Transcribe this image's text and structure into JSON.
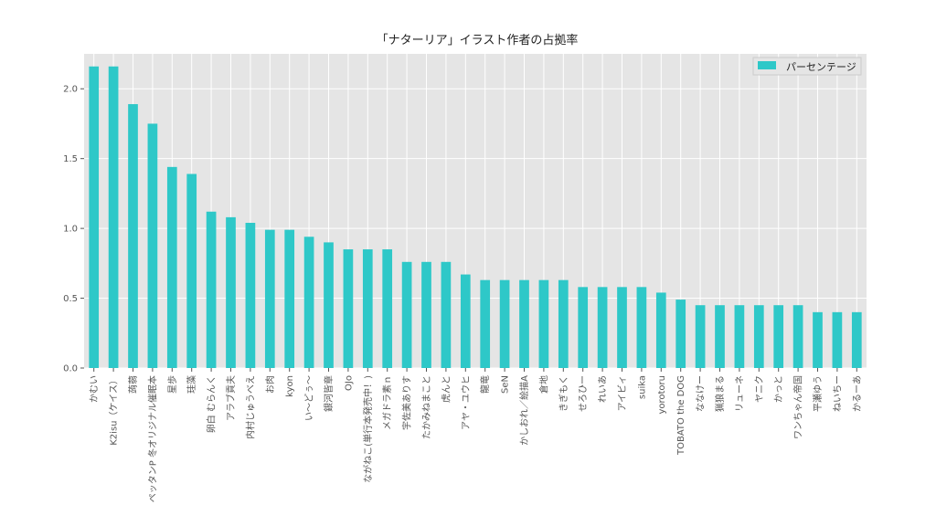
{
  "chart_data": {
    "type": "bar",
    "title": "「ナターリア」イラスト作者の占拠率",
    "xlabel": "",
    "ylabel": "",
    "ylim": [
      0,
      2.25
    ],
    "yticks": [
      0.0,
      0.5,
      1.0,
      1.5,
      2.0
    ],
    "ytick_labels": [
      "0.0",
      "0.5",
      "1.0",
      "1.5",
      "2.0"
    ],
    "grid": true,
    "legend_position": "top-right",
    "bar_color": "#2ec8c8",
    "background_color": "#e5e5e5",
    "categories": [
      "かむい",
      "K2isu（ケイス）",
      "蒟蒻",
      "ペッタンP 冬オリジナル催眠本",
      "星歩",
      "珪藻",
      "卵白 むらんく",
      "アラブ貢夫",
      "内村じゅうべえ",
      "お肉",
      "kyon",
      "い～どぅ～",
      "銀河皆章",
      "OJo",
      "ながねこ(単行本発売中！)",
      "メガドラ素ｎ",
      "宇佐美ありす",
      "たかみねまこと",
      "虎んと",
      "アヤ・ユウヒ",
      "龍竜",
      "SeN",
      "かしおれ／絵描A",
      "倉地",
      "きぎもく",
      "せろひー",
      "れいあ",
      "アイビィ",
      "suika",
      "yorotoru",
      "TOBATO the DOG",
      "ななけー",
      "猟狼まる",
      "リューネ",
      "ヤニク",
      "かっと",
      "ワンちゃん帝国",
      "平瀬ゆう",
      "ねいちー",
      "かるーあ"
    ],
    "series": [
      {
        "name": "パーセンテージ",
        "values": [
          2.16,
          2.16,
          1.89,
          1.75,
          1.44,
          1.39,
          1.12,
          1.08,
          1.04,
          0.99,
          0.99,
          0.94,
          0.9,
          0.85,
          0.85,
          0.85,
          0.76,
          0.76,
          0.76,
          0.67,
          0.63,
          0.63,
          0.63,
          0.63,
          0.63,
          0.58,
          0.58,
          0.58,
          0.58,
          0.54,
          0.49,
          0.45,
          0.45,
          0.45,
          0.45,
          0.45,
          0.45,
          0.4,
          0.4,
          0.4
        ]
      }
    ]
  }
}
